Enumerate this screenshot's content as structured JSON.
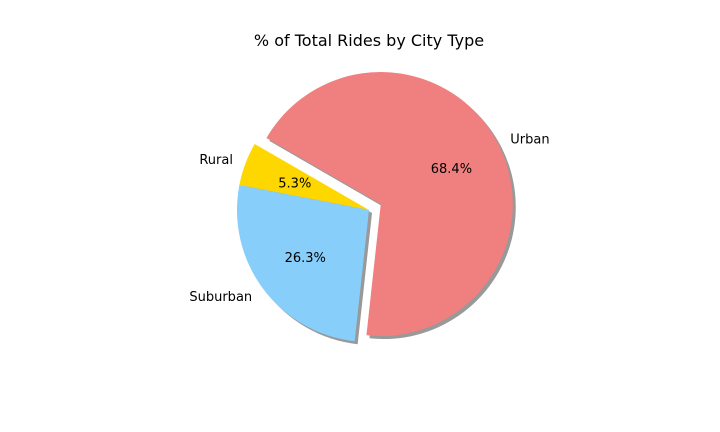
{
  "chart_data": {
    "type": "pie",
    "title": "% of Total Rides by City Type",
    "slices": [
      {
        "label": "Rural",
        "value": 5.3,
        "pct_label": "5.3%",
        "color": "#ffd700",
        "exploded": false
      },
      {
        "label": "Suburban",
        "value": 26.3,
        "pct_label": "26.3%",
        "color": "#87cefa",
        "exploded": false
      },
      {
        "label": "Urban",
        "value": 68.4,
        "pct_label": "68.4%",
        "color": "#f08080",
        "exploded": true
      }
    ],
    "shadow": true
  }
}
